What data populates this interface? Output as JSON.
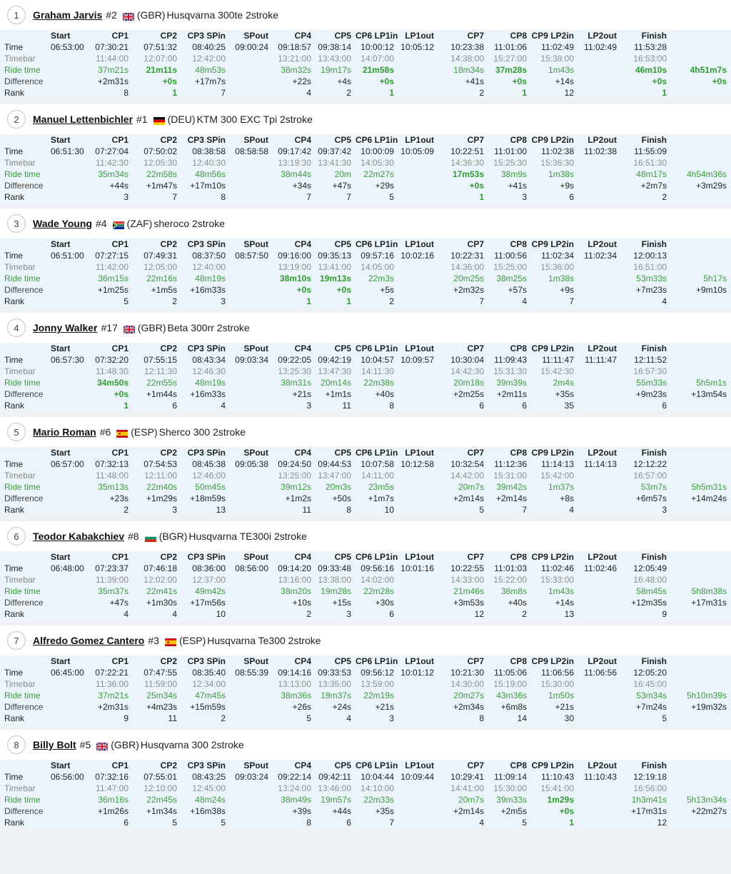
{
  "columns": [
    "Start",
    "CP1",
    "CP2",
    "CP3 SPin",
    "SPout",
    "CP4",
    "CP5",
    "CP6 LP1in",
    "LP1out",
    "CP7",
    "CP8",
    "CP9 LP2in",
    "LP2out",
    "Finish"
  ],
  "row_labels": {
    "time": "Time",
    "timebar": "Timebar",
    "ride": "Ride time",
    "diff": "Difference",
    "rank": "Rank"
  },
  "riders": [
    {
      "pos": "1",
      "name": "Graham Jarvis",
      "number": "#2",
      "flag": "gb-flag-icon",
      "country": "(GBR)",
      "bike": "Husqvarna 300te 2stroke",
      "time": [
        "06:53:00",
        "07:30:21",
        "07:51:32",
        "08:40:25",
        "09:00:24",
        "09:18:57",
        "09:38:14",
        "10:00:12",
        "10:05:12",
        "10:23:38",
        "11:01:06",
        "11:02:49",
        "11:02:49",
        "11:53:28",
        ""
      ],
      "timebar": [
        "",
        "11:44:00",
        "12:07:00",
        "12:42:00",
        "",
        "13:21:00",
        "13:43:00",
        "14:07:00",
        "",
        "14:38:00",
        "15:27:00",
        "15:38:00",
        "",
        "16:53:00",
        ""
      ],
      "ride": [
        "",
        "37m21s",
        "21m11s",
        "48m53s",
        "",
        "38m32s",
        "19m17s",
        "21m58s",
        "",
        "18m34s",
        "37m28s",
        "1m43s",
        "",
        "46m10s",
        "4h51m7s"
      ],
      "diff": [
        "",
        "+2m31s",
        "+0s",
        "+17m7s",
        "",
        "+22s",
        "+4s",
        "+0s",
        "",
        "+41s",
        "+0s",
        "+14s",
        "",
        "+0s",
        "+0s"
      ],
      "rank": [
        "",
        "8",
        "1",
        "7",
        "",
        "4",
        "2",
        "1",
        "",
        "2",
        "1",
        "12",
        "",
        "1",
        ""
      ],
      "ride_best": [
        2,
        7,
        10,
        13,
        14
      ],
      "diff_best": [
        2,
        7,
        10,
        13,
        14
      ],
      "rank_best": [
        2,
        7,
        10,
        13
      ]
    },
    {
      "pos": "2",
      "name": "Manuel Lettenbichler",
      "number": "#1",
      "flag": "de-flag-icon",
      "country": "(DEU)",
      "bike": "KTM 300 EXC Tpi 2stroke",
      "time": [
        "06:51:30",
        "07:27:04",
        "07:50:02",
        "08:38:58",
        "08:58:58",
        "09:17:42",
        "09:37:42",
        "10:00:09",
        "10:05:09",
        "10:22:51",
        "11:01:00",
        "11:02:38",
        "11:02:38",
        "11:55:09",
        ""
      ],
      "timebar": [
        "",
        "11:42:30",
        "12:05:30",
        "12:40:30",
        "",
        "13:19:30",
        "13:41:30",
        "14:05:30",
        "",
        "14:36:30",
        "15:25:30",
        "15:36:30",
        "",
        "16:51:30",
        ""
      ],
      "ride": [
        "",
        "35m34s",
        "22m58s",
        "48m56s",
        "",
        "38m44s",
        "20m",
        "22m27s",
        "",
        "17m53s",
        "38m9s",
        "1m38s",
        "",
        "48m17s",
        "4h54m36s"
      ],
      "diff": [
        "",
        "+44s",
        "+1m47s",
        "+17m10s",
        "",
        "+34s",
        "+47s",
        "+29s",
        "",
        "+0s",
        "+41s",
        "+9s",
        "",
        "+2m7s",
        "+3m29s"
      ],
      "rank": [
        "",
        "3",
        "7",
        "8",
        "",
        "7",
        "7",
        "5",
        "",
        "1",
        "3",
        "6",
        "",
        "2",
        ""
      ],
      "ride_best": [
        9
      ],
      "diff_best": [
        9
      ],
      "rank_best": [
        9
      ]
    },
    {
      "pos": "3",
      "name": "Wade Young",
      "number": "#4",
      "flag": "za-flag-icon",
      "country": "(ZAF)",
      "bike": "sheroco 2stroke",
      "time": [
        "06:51:00",
        "07:27:15",
        "07:49:31",
        "08:37:50",
        "08:57:50",
        "09:16:00",
        "09:35:13",
        "09:57:16",
        "10:02:16",
        "10:22:31",
        "11:00:56",
        "11:02:34",
        "11:02:34",
        "12:00:13",
        ""
      ],
      "timebar": [
        "",
        "11:42:00",
        "12:05:00",
        "12:40:00",
        "",
        "13:19:00",
        "13:41:00",
        "14:05:00",
        "",
        "14:36:00",
        "15:25:00",
        "15:36:00",
        "",
        "16:51:00",
        ""
      ],
      "ride": [
        "",
        "36m15s",
        "22m16s",
        "48m19s",
        "",
        "38m10s",
        "19m13s",
        "22m3s",
        "",
        "20m25s",
        "38m25s",
        "1m38s",
        "",
        "53m33s",
        "5h17s"
      ],
      "diff": [
        "",
        "+1m25s",
        "+1m5s",
        "+16m33s",
        "",
        "+0s",
        "+0s",
        "+5s",
        "",
        "+2m32s",
        "+57s",
        "+9s",
        "",
        "+7m23s",
        "+9m10s"
      ],
      "rank": [
        "",
        "5",
        "2",
        "3",
        "",
        "1",
        "1",
        "2",
        "",
        "7",
        "4",
        "7",
        "",
        "4",
        ""
      ],
      "ride_best": [
        5,
        6
      ],
      "diff_best": [
        5,
        6
      ],
      "rank_best": [
        5,
        6
      ]
    },
    {
      "pos": "4",
      "name": "Jonny Walker",
      "number": "#17",
      "flag": "gb-flag-icon",
      "country": "(GBR)",
      "bike": "Beta 300rr 2stroke",
      "time": [
        "06:57:30",
        "07:32:20",
        "07:55:15",
        "08:43:34",
        "09:03:34",
        "09:22:05",
        "09:42:19",
        "10:04:57",
        "10:09:57",
        "10:30:04",
        "11:09:43",
        "11:11:47",
        "11:11:47",
        "12:11:52",
        ""
      ],
      "timebar": [
        "",
        "11:48:30",
        "12:11:30",
        "12:46:30",
        "",
        "13:25:30",
        "13:47:30",
        "14:11:30",
        "",
        "14:42:30",
        "15:31:30",
        "15:42:30",
        "",
        "16:57:30",
        ""
      ],
      "ride": [
        "",
        "34m50s",
        "22m55s",
        "48m19s",
        "",
        "38m31s",
        "20m14s",
        "22m38s",
        "",
        "20m18s",
        "39m39s",
        "2m4s",
        "",
        "55m33s",
        "5h5m1s"
      ],
      "diff": [
        "",
        "+0s",
        "+1m44s",
        "+16m33s",
        "",
        "+21s",
        "+1m1s",
        "+40s",
        "",
        "+2m25s",
        "+2m11s",
        "+35s",
        "",
        "+9m23s",
        "+13m54s"
      ],
      "rank": [
        "",
        "1",
        "6",
        "4",
        "",
        "3",
        "11",
        "8",
        "",
        "6",
        "6",
        "35",
        "",
        "6",
        ""
      ],
      "ride_best": [
        1
      ],
      "diff_best": [
        1
      ],
      "rank_best": [
        1
      ]
    },
    {
      "pos": "5",
      "name": "Mario Roman",
      "number": "#6",
      "flag": "es-flag-icon",
      "country": "(ESP)",
      "bike": "Sherco 300 2stroke",
      "time": [
        "06:57:00",
        "07:32:13",
        "07:54:53",
        "08:45:38",
        "09:05:38",
        "09:24:50",
        "09:44:53",
        "10:07:58",
        "10:12:58",
        "10:32:54",
        "11:12:36",
        "11:14:13",
        "11:14:13",
        "12:12:22",
        ""
      ],
      "timebar": [
        "",
        "11:48:00",
        "12:11:00",
        "12:46:00",
        "",
        "13:25:00",
        "13:47:00",
        "14:11:00",
        "",
        "14:42:00",
        "15:31:00",
        "15:42:00",
        "",
        "16:57:00",
        ""
      ],
      "ride": [
        "",
        "35m13s",
        "22m40s",
        "50m45s",
        "",
        "39m12s",
        "20m3s",
        "23m5s",
        "",
        "20m7s",
        "39m42s",
        "1m37s",
        "",
        "53m7s",
        "5h5m31s"
      ],
      "diff": [
        "",
        "+23s",
        "+1m29s",
        "+18m59s",
        "",
        "+1m2s",
        "+50s",
        "+1m7s",
        "",
        "+2m14s",
        "+2m14s",
        "+8s",
        "",
        "+6m57s",
        "+14m24s"
      ],
      "rank": [
        "",
        "2",
        "3",
        "13",
        "",
        "11",
        "8",
        "10",
        "",
        "5",
        "7",
        "4",
        "",
        "3",
        ""
      ],
      "ride_best": [],
      "diff_best": [],
      "rank_best": []
    },
    {
      "pos": "6",
      "name": "Teodor Kabakchiev",
      "number": "#8",
      "flag": "bg-flag-icon",
      "country": "(BGR)",
      "bike": "Husqvarna TE300i 2stroke",
      "time": [
        "06:48:00",
        "07:23:37",
        "07:46:18",
        "08:36:00",
        "08:56:00",
        "09:14:20",
        "09:33:48",
        "09:56:16",
        "10:01:16",
        "10:22:55",
        "11:01:03",
        "11:02:46",
        "11:02:46",
        "12:05:49",
        ""
      ],
      "timebar": [
        "",
        "11:39:00",
        "12:02:00",
        "12:37:00",
        "",
        "13:16:00",
        "13:38:00",
        "14:02:00",
        "",
        "14:33:00",
        "15:22:00",
        "15:33:00",
        "",
        "16:48:00",
        ""
      ],
      "ride": [
        "",
        "35m37s",
        "22m41s",
        "49m42s",
        "",
        "38m20s",
        "19m28s",
        "22m28s",
        "",
        "21m46s",
        "38m8s",
        "1m43s",
        "",
        "58m45s",
        "5h8m38s"
      ],
      "diff": [
        "",
        "+47s",
        "+1m30s",
        "+17m56s",
        "",
        "+10s",
        "+15s",
        "+30s",
        "",
        "+3m53s",
        "+40s",
        "+14s",
        "",
        "+12m35s",
        "+17m31s"
      ],
      "rank": [
        "",
        "4",
        "4",
        "10",
        "",
        "2",
        "3",
        "6",
        "",
        "12",
        "2",
        "13",
        "",
        "9",
        ""
      ],
      "ride_best": [],
      "diff_best": [],
      "rank_best": []
    },
    {
      "pos": "7",
      "name": "Alfredo Gomez Cantero",
      "number": "#3",
      "flag": "es-flag-icon",
      "country": "(ESP)",
      "bike": "Husqvarna Te300 2stroke",
      "time": [
        "06:45:00",
        "07:22:21",
        "07:47:55",
        "08:35:40",
        "08:55:39",
        "09:14:16",
        "09:33:53",
        "09:56:12",
        "10:01:12",
        "10:21:30",
        "11:05:06",
        "11:06:56",
        "11:06:56",
        "12:05:20",
        ""
      ],
      "timebar": [
        "",
        "11:36:00",
        "11:59:00",
        "12:34:00",
        "",
        "13:13:00",
        "13:35:00",
        "13:59:00",
        "",
        "14:30:00",
        "15:19:00",
        "15:30:00",
        "",
        "16:45:00",
        ""
      ],
      "ride": [
        "",
        "37m21s",
        "25m34s",
        "47m45s",
        "",
        "38m36s",
        "19m37s",
        "22m19s",
        "",
        "20m27s",
        "43m36s",
        "1m50s",
        "",
        "53m34s",
        "5h10m39s"
      ],
      "diff": [
        "",
        "+2m31s",
        "+4m23s",
        "+15m59s",
        "",
        "+26s",
        "+24s",
        "+21s",
        "",
        "+2m34s",
        "+6m8s",
        "+21s",
        "",
        "+7m24s",
        "+19m32s"
      ],
      "rank": [
        "",
        "9",
        "11",
        "2",
        "",
        "5",
        "4",
        "3",
        "",
        "8",
        "14",
        "30",
        "",
        "5",
        ""
      ],
      "ride_best": [],
      "diff_best": [],
      "rank_best": []
    },
    {
      "pos": "8",
      "name": "Billy Bolt",
      "number": "#5",
      "flag": "gb-flag-icon",
      "country": "(GBR)",
      "bike": "Husqvarna 300 2stroke",
      "time": [
        "06:56:00",
        "07:32:16",
        "07:55:01",
        "08:43:25",
        "09:03:24",
        "09:22:14",
        "09:42:11",
        "10:04:44",
        "10:09:44",
        "10:29:41",
        "11:09:14",
        "11:10:43",
        "11:10:43",
        "12:19:18",
        ""
      ],
      "timebar": [
        "",
        "11:47:00",
        "12:10:00",
        "12:45:00",
        "",
        "13:24:00",
        "13:46:00",
        "14:10:00",
        "",
        "14:41:00",
        "15:30:00",
        "15:41:00",
        "",
        "16:56:00",
        ""
      ],
      "ride": [
        "",
        "36m16s",
        "22m45s",
        "48m24s",
        "",
        "38m49s",
        "19m57s",
        "22m33s",
        "",
        "20m7s",
        "39m33s",
        "1m29s",
        "",
        "1h3m41s",
        "5h13m34s"
      ],
      "diff": [
        "",
        "+1m26s",
        "+1m34s",
        "+16m38s",
        "",
        "+39s",
        "+44s",
        "+35s",
        "",
        "+2m14s",
        "+2m5s",
        "+0s",
        "",
        "+17m31s",
        "+22m27s"
      ],
      "rank": [
        "",
        "6",
        "5",
        "5",
        "",
        "8",
        "6",
        "7",
        "",
        "4",
        "5",
        "1",
        "",
        "12",
        ""
      ],
      "ride_best": [
        11
      ],
      "diff_best": [
        11
      ],
      "rank_best": [
        11
      ]
    }
  ]
}
